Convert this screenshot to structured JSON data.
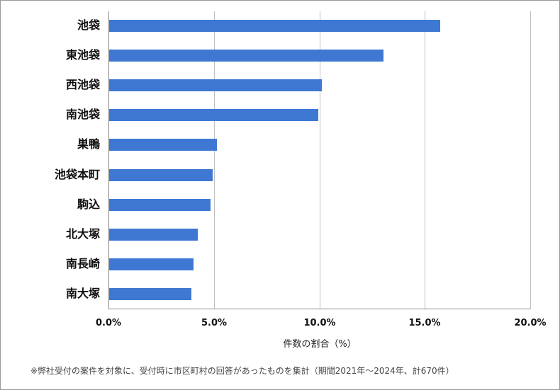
{
  "chart_data": {
    "type": "bar",
    "orientation": "horizontal",
    "title": "",
    "categories": [
      "池袋",
      "東池袋",
      "西池袋",
      "南池袋",
      "巣鴨",
      "池袋本町",
      "駒込",
      "北大塚",
      "南長崎",
      "南大塚"
    ],
    "values": [
      15.7,
      13.0,
      10.1,
      9.9,
      5.1,
      4.9,
      4.8,
      4.2,
      4.0,
      3.9
    ],
    "xlabel": "件数の割合（%）",
    "ylabel": "",
    "xlim": [
      0,
      20
    ],
    "xticks": [
      "0.0%",
      "5.0%",
      "10.0%",
      "15.0%",
      "20.0%"
    ],
    "grid": "vertical",
    "legend": "none",
    "bar_color": "#3E78D2",
    "footnote": "※弊社受付の案件を対象に、受付時に市区町村の回答があったものを集計（期間2021年～2024年、計670件）"
  }
}
